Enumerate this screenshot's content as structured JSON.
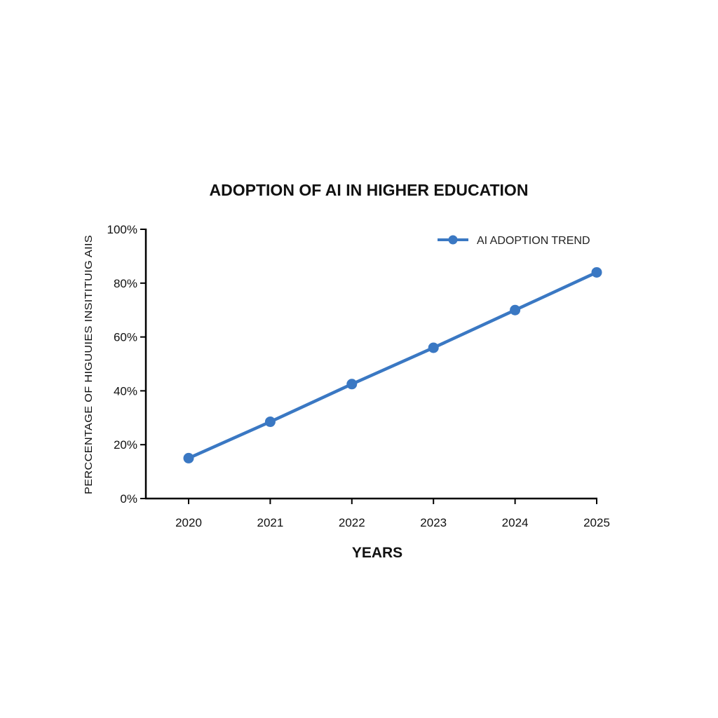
{
  "chart_data": {
    "type": "line",
    "title": "ADOPTION OF AI IN HIGHER EDUCATION",
    "xlabel": "YEARS",
    "ylabel": "PERCCENTAGE OF HIGUUIES INSITITUIG AIIS",
    "categories": [
      "2020",
      "2021",
      "2022",
      "2023",
      "2024",
      "2025"
    ],
    "y_ticks": [
      "0%",
      "20%",
      "40%",
      "60%",
      "80%",
      "100%"
    ],
    "ylim": [
      0,
      100
    ],
    "grid": false,
    "legend_position": "top-right",
    "series": [
      {
        "name": "AI ADOPTION TREND",
        "color": "#3a78c3",
        "values": [
          15,
          28.5,
          42.5,
          56,
          70,
          84
        ]
      }
    ]
  }
}
